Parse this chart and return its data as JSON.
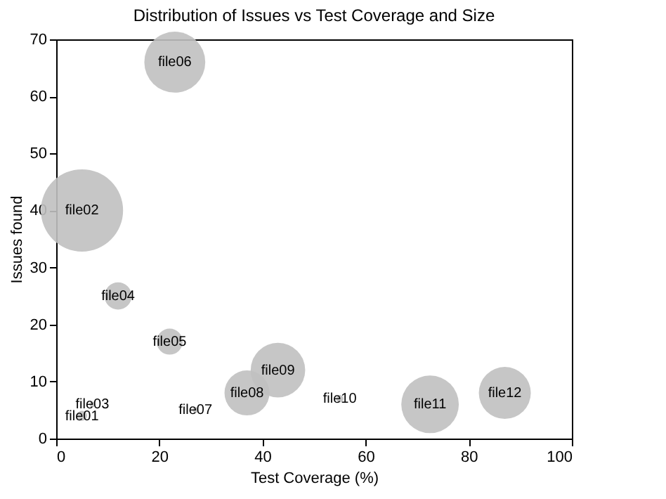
{
  "chart_data": {
    "type": "bubble",
    "title": "Distribution of Issues vs Test Coverage and Size",
    "xlabel": "Test Coverage (%)",
    "ylabel": "Issues found",
    "series": [
      {
        "color": "#c0c0c0",
        "x": [
          5,
          5,
          7,
          12,
          22,
          23,
          27,
          37,
          43,
          55,
          72.5,
          87
        ],
        "values": [
          4,
          40,
          6,
          25,
          17,
          66,
          5,
          8,
          12,
          7,
          6,
          8
        ],
        "sizes": [
          0.015,
          1,
          0.005,
          0.11,
          0.1,
          0.55,
          0.005,
          0.3,
          0.44,
          0.008,
          0.49,
          0.4
        ]
      }
    ],
    "annotations": [
      {
        "text": "file01",
        "x": 5,
        "y": 4
      },
      {
        "text": "file02",
        "x": 5,
        "y": 40
      },
      {
        "text": "file03",
        "x": 7,
        "y": 6
      },
      {
        "text": "file04",
        "x": 12,
        "y": 25
      },
      {
        "text": "file05",
        "x": 22,
        "y": 17
      },
      {
        "text": "file06",
        "x": 23,
        "y": 66
      },
      {
        "text": "file07",
        "x": 27,
        "y": 5
      },
      {
        "text": "file08",
        "x": 37,
        "y": 8
      },
      {
        "text": "file09",
        "x": 43,
        "y": 12
      },
      {
        "text": "file10",
        "x": 55,
        "y": 7
      },
      {
        "text": "file11",
        "x": 72.5,
        "y": 6
      },
      {
        "text": "file12",
        "x": 87,
        "y": 8
      }
    ],
    "xlim": [
      0,
      100
    ],
    "xticks": [
      0,
      20,
      40,
      60,
      80,
      100
    ],
    "ylim": [
      0,
      70
    ],
    "yticks": [
      0,
      10,
      20,
      30,
      40,
      50,
      60,
      70
    ],
    "grid": false,
    "legend": false
  }
}
